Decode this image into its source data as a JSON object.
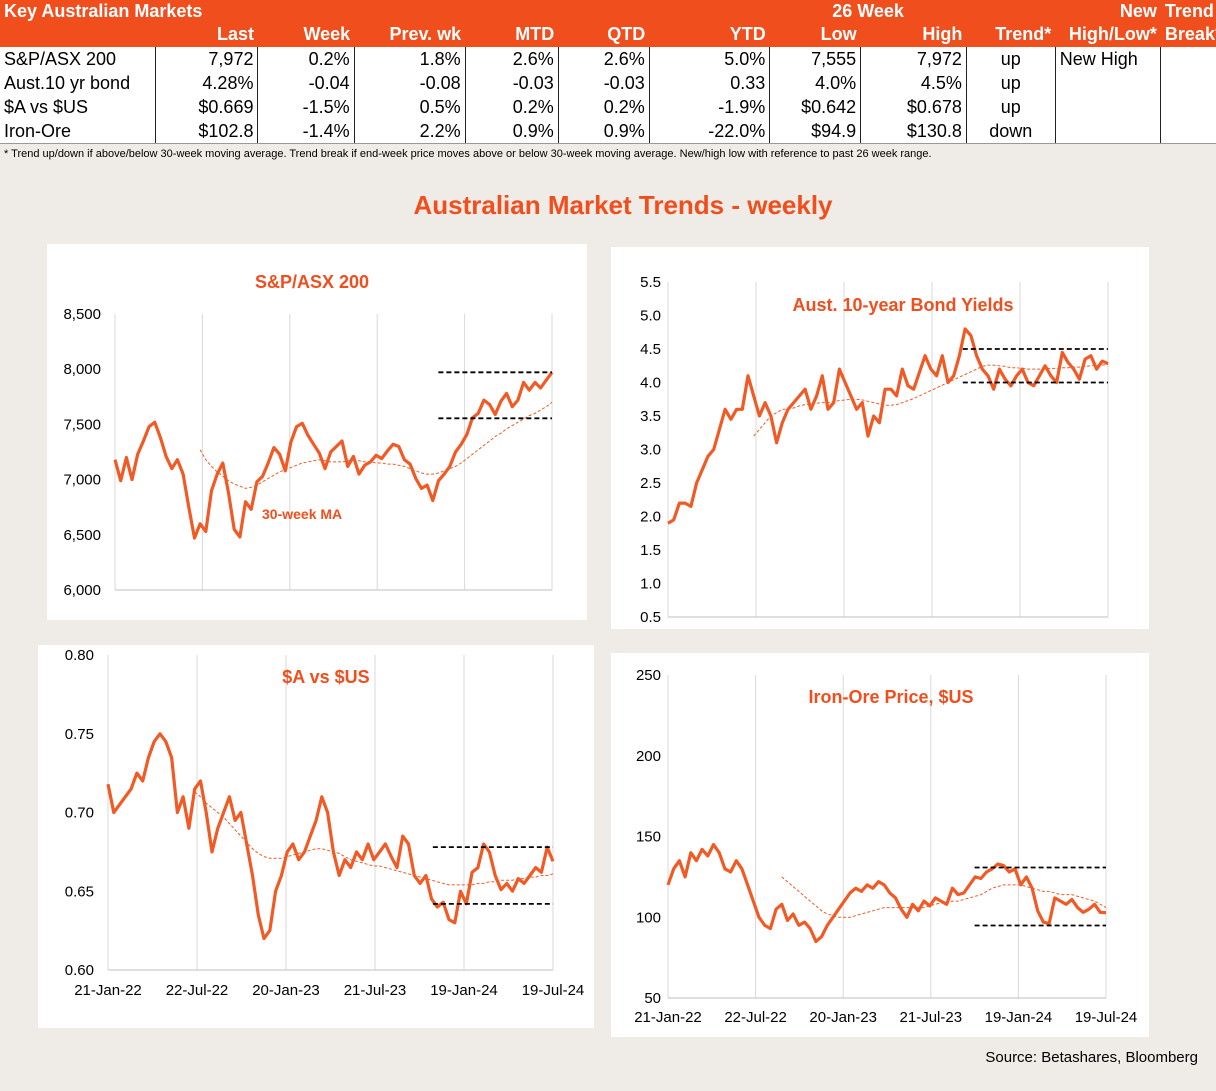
{
  "table": {
    "title": "Key Australian Markets",
    "group_header": "26 Week",
    "headers": {
      "last": "Last",
      "week": "Week",
      "prev_wk": "Prev. wk",
      "mtd": "MTD",
      "qtd": "QTD",
      "ytd": "YTD",
      "low": "Low",
      "high": "High",
      "trend": "Trend*",
      "new_top": "New",
      "new_bottom": "High/Low*",
      "break_top": "Trend",
      "break_bottom": "Break*"
    },
    "rows": [
      {
        "name": "S&P/ASX 200",
        "last": "7,972",
        "week": "0.2%",
        "prev": "1.8%",
        "mtd": "2.6%",
        "qtd": "2.6%",
        "ytd": "5.0%",
        "low": "7,555",
        "high": "7,972",
        "trend": "up",
        "newhl": "New High",
        "brk": ""
      },
      {
        "name": "Aust.10 yr bond",
        "last": "4.28%",
        "week": "-0.04",
        "prev": "-0.08",
        "mtd": "-0.03",
        "qtd": "-0.03",
        "ytd": "0.33",
        "low": "4.0%",
        "high": "4.5%",
        "trend": "up",
        "newhl": "",
        "brk": ""
      },
      {
        "name": "$A vs $US",
        "last": "$0.669",
        "week": "-1.5%",
        "prev": "0.5%",
        "mtd": "0.2%",
        "qtd": "0.2%",
        "ytd": "-1.9%",
        "low": "$0.642",
        "high": "$0.678",
        "trend": "up",
        "newhl": "",
        "brk": ""
      },
      {
        "name": "Iron-Ore",
        "last": "$102.8",
        "week": "-1.4%",
        "prev": "2.2%",
        "mtd": "0.9%",
        "qtd": "0.9%",
        "ytd": "-22.0%",
        "low": "$94.9",
        "high": "$130.8",
        "trend": "down",
        "newhl": "",
        "brk": ""
      }
    ],
    "footnote": "*  Trend up/down if above/below 30-week moving average. Trend break if end-week price moves above or below 30-week moving average.  New/high low with reference to past 26 week range."
  },
  "main_title": "Australian Market Trends - weekly",
  "source": "Source: Betashares, Bloomberg",
  "colors": {
    "accent": "#f04e1c",
    "series": "#f15a24",
    "ma": "#f15a24",
    "range_lines": "#000000",
    "grid": "#d9d9d9"
  },
  "chart_data": [
    {
      "id": "asx",
      "type": "line",
      "title": "S&P/ASX 200",
      "ylim": [
        6000,
        8500
      ],
      "yticks": [
        6000,
        6500,
        7000,
        7500,
        8000,
        8500
      ],
      "ytick_labels": [
        "6,000",
        "6,500",
        "7,000",
        "7,500",
        "8,000",
        "8,500"
      ],
      "xticks": [],
      "annotation": "30-week MA",
      "x_start": "2022-01-21",
      "x_step_weeks": 2,
      "series": [
        {
          "values": [
            7180,
            6990,
            7200,
            7000,
            7230,
            7350,
            7480,
            7520,
            7380,
            7210,
            7100,
            7180,
            7050,
            6750,
            6470,
            6600,
            6530,
            6900,
            7050,
            7150,
            6880,
            6550,
            6480,
            6800,
            6730,
            6980,
            7030,
            7150,
            7290,
            7230,
            7080,
            7340,
            7480,
            7510,
            7400,
            7320,
            7240,
            7100,
            7250,
            7300,
            7350,
            7120,
            7210,
            7050,
            7130,
            7160,
            7220,
            7190,
            7260,
            7320,
            7300,
            7180,
            7140,
            7010,
            6920,
            6950,
            6810,
            6990,
            7050,
            7120,
            7250,
            7320,
            7410,
            7560,
            7600,
            7720,
            7680,
            7590,
            7710,
            7780,
            7660,
            7720,
            7880,
            7810,
            7880,
            7830,
            7901,
            7972
          ]
        }
      ],
      "ma": [
        null,
        null,
        null,
        null,
        null,
        null,
        null,
        null,
        null,
        null,
        null,
        null,
        null,
        null,
        null,
        7270,
        7180,
        7120,
        7070,
        7030,
        6990,
        6960,
        6940,
        6920,
        6930,
        6950,
        6980,
        7010,
        7040,
        7070,
        7090,
        7110,
        7130,
        7150,
        7160,
        7170,
        7180,
        7170,
        7160,
        7160,
        7160,
        7170,
        7170,
        7170,
        7160,
        7160,
        7150,
        7150,
        7140,
        7140,
        7130,
        7120,
        7100,
        7080,
        7060,
        7050,
        7050,
        7060,
        7080,
        7100,
        7120,
        7150,
        7190,
        7230,
        7270,
        7310,
        7350,
        7390,
        7420,
        7460,
        7490,
        7520,
        7550,
        7580,
        7600,
        7630,
        7660,
        7700
      ],
      "ranges": [
        [
          7555,
          0.74,
          1.0
        ],
        [
          7972,
          0.74,
          1.0
        ]
      ]
    },
    {
      "id": "bond",
      "type": "line",
      "title": "Aust. 10-year Bond Yields",
      "ylim": [
        0.5,
        5.5
      ],
      "yticks": [
        0.5,
        1.0,
        1.5,
        2.0,
        2.5,
        3.0,
        3.5,
        4.0,
        4.5,
        5.0,
        5.5
      ],
      "ytick_labels": [
        "0.5",
        "1.0",
        "1.5",
        "2.0",
        "2.5",
        "3.0",
        "3.5",
        "4.0",
        "4.5",
        "5.0",
        "5.5"
      ],
      "xticks": [],
      "series": [
        {
          "values": [
            1.9,
            1.95,
            2.2,
            2.2,
            2.15,
            2.5,
            2.7,
            2.9,
            3.0,
            3.3,
            3.6,
            3.45,
            3.6,
            3.6,
            4.1,
            3.8,
            3.5,
            3.7,
            3.5,
            3.1,
            3.4,
            3.6,
            3.7,
            3.8,
            3.9,
            3.6,
            3.8,
            4.1,
            3.6,
            3.7,
            4.2,
            4.0,
            3.8,
            3.6,
            3.7,
            3.2,
            3.5,
            3.4,
            3.9,
            3.9,
            3.8,
            4.2,
            3.95,
            3.9,
            4.15,
            4.4,
            4.2,
            4.1,
            4.4,
            4.0,
            4.1,
            4.4,
            4.8,
            4.7,
            4.4,
            4.2,
            4.1,
            3.9,
            4.2,
            4.05,
            3.95,
            4.1,
            4.2,
            4.0,
            3.95,
            4.1,
            4.25,
            4.1,
            4.0,
            4.45,
            4.3,
            4.2,
            4.05,
            4.35,
            4.4,
            4.2,
            4.32,
            4.28
          ]
        }
      ],
      "ma": [
        null,
        null,
        null,
        null,
        null,
        null,
        null,
        null,
        null,
        null,
        null,
        null,
        null,
        null,
        null,
        3.2,
        3.3,
        3.4,
        3.5,
        3.55,
        3.6,
        3.6,
        3.62,
        3.65,
        3.67,
        3.68,
        3.69,
        3.7,
        3.7,
        3.72,
        3.73,
        3.74,
        3.75,
        3.75,
        3.74,
        3.72,
        3.7,
        3.68,
        3.66,
        3.66,
        3.67,
        3.7,
        3.73,
        3.76,
        3.8,
        3.84,
        3.88,
        3.92,
        3.96,
        4.0,
        4.04,
        4.08,
        4.12,
        4.16,
        4.2,
        4.24,
        4.26,
        4.26,
        4.25,
        4.24,
        4.22,
        4.22,
        4.21,
        4.2,
        4.2,
        4.2,
        4.21,
        4.21,
        4.21,
        4.22,
        4.22,
        4.23,
        4.23,
        4.24,
        4.25,
        4.25,
        4.26,
        4.27
      ],
      "ranges": [
        [
          4.0,
          0.67,
          1.0
        ],
        [
          4.5,
          0.67,
          1.0
        ]
      ]
    },
    {
      "id": "aud",
      "type": "line",
      "title": "$A vs $US",
      "ylim": [
        0.6,
        0.8
      ],
      "yticks": [
        0.6,
        0.65,
        0.7,
        0.75,
        0.8
      ],
      "ytick_labels": [
        "0.60",
        "0.65",
        "0.70",
        "0.75",
        "0.80"
      ],
      "xticks": [
        "21-Jan-22",
        "22-Jul-22",
        "20-Jan-23",
        "21-Jul-23",
        "19-Jan-24",
        "19-Jul-24"
      ],
      "series": [
        {
          "values": [
            0.718,
            0.7,
            0.705,
            0.71,
            0.715,
            0.725,
            0.72,
            0.735,
            0.745,
            0.75,
            0.745,
            0.735,
            0.7,
            0.71,
            0.69,
            0.715,
            0.72,
            0.7,
            0.675,
            0.69,
            0.7,
            0.71,
            0.695,
            0.7,
            0.68,
            0.66,
            0.635,
            0.62,
            0.625,
            0.65,
            0.66,
            0.675,
            0.68,
            0.67,
            0.675,
            0.685,
            0.695,
            0.71,
            0.7,
            0.675,
            0.66,
            0.67,
            0.665,
            0.675,
            0.67,
            0.68,
            0.67,
            0.675,
            0.68,
            0.672,
            0.665,
            0.685,
            0.68,
            0.66,
            0.655,
            0.66,
            0.645,
            0.64,
            0.643,
            0.632,
            0.63,
            0.65,
            0.642,
            0.662,
            0.665,
            0.68,
            0.675,
            0.66,
            0.651,
            0.655,
            0.65,
            0.658,
            0.655,
            0.66,
            0.665,
            0.662,
            0.678,
            0.669
          ]
        }
      ],
      "ma": [
        null,
        null,
        null,
        null,
        null,
        null,
        null,
        null,
        null,
        null,
        null,
        null,
        null,
        null,
        null,
        0.713,
        0.71,
        0.706,
        0.703,
        0.7,
        0.697,
        0.693,
        0.689,
        0.685,
        0.681,
        0.677,
        0.674,
        0.672,
        0.671,
        0.671,
        0.671,
        0.672,
        0.673,
        0.674,
        0.675,
        0.676,
        0.677,
        0.677,
        0.676,
        0.675,
        0.674,
        0.672,
        0.67,
        0.669,
        0.668,
        0.667,
        0.666,
        0.666,
        0.665,
        0.664,
        0.663,
        0.662,
        0.661,
        0.66,
        0.659,
        0.658,
        0.657,
        0.656,
        0.655,
        0.654,
        0.654,
        0.654,
        0.654,
        0.654,
        0.655,
        0.655,
        0.656,
        0.656,
        0.657,
        0.657,
        0.657,
        0.658,
        0.658,
        0.659,
        0.659,
        0.66,
        0.66,
        0.661
      ],
      "ranges": [
        [
          0.642,
          0.73,
          1.0
        ],
        [
          0.678,
          0.73,
          1.0
        ]
      ]
    },
    {
      "id": "iron",
      "type": "line",
      "title": "Iron-Ore Price, $US",
      "ylim": [
        50,
        250
      ],
      "yticks": [
        50,
        100,
        150,
        200,
        250
      ],
      "ytick_labels": [
        "50",
        "100",
        "150",
        "200",
        "250"
      ],
      "xticks": [
        "21-Jan-22",
        "22-Jul-22",
        "20-Jan-23",
        "21-Jul-23",
        "19-Jan-24",
        "19-Jul-24"
      ],
      "series": [
        {
          "values": [
            120,
            130,
            135,
            125,
            140,
            135,
            142,
            138,
            145,
            140,
            130,
            128,
            135,
            130,
            120,
            110,
            100,
            95,
            93,
            105,
            108,
            98,
            102,
            95,
            97,
            93,
            85,
            88,
            95,
            100,
            105,
            110,
            115,
            118,
            116,
            120,
            118,
            122,
            120,
            115,
            112,
            105,
            100,
            108,
            104,
            110,
            107,
            112,
            110,
            108,
            118,
            114,
            115,
            120,
            125,
            124,
            128,
            130,
            133,
            132,
            128,
            130,
            120,
            125,
            118,
            104,
            97,
            96,
            112,
            110,
            108,
            111,
            106,
            103,
            105,
            108,
            103,
            102.8
          ]
        }
      ],
      "ma": [
        null,
        null,
        null,
        null,
        null,
        null,
        null,
        null,
        null,
        null,
        null,
        null,
        null,
        null,
        null,
        null,
        null,
        null,
        null,
        null,
        125,
        122,
        119,
        116,
        113,
        110,
        107,
        104,
        102,
        101,
        100,
        100,
        100,
        101,
        102,
        103,
        104,
        105,
        106,
        106,
        106,
        106,
        106,
        106,
        106,
        106,
        107,
        108,
        109,
        109,
        110,
        110,
        111,
        112,
        113,
        114,
        116,
        118,
        119,
        120,
        120,
        120,
        120,
        119,
        118,
        117,
        116,
        116,
        115,
        114,
        114,
        114,
        113,
        112,
        111,
        110,
        108,
        106
      ],
      "ranges": [
        [
          94.9,
          0.7,
          1.0
        ],
        [
          130.8,
          0.7,
          1.0
        ]
      ]
    }
  ]
}
